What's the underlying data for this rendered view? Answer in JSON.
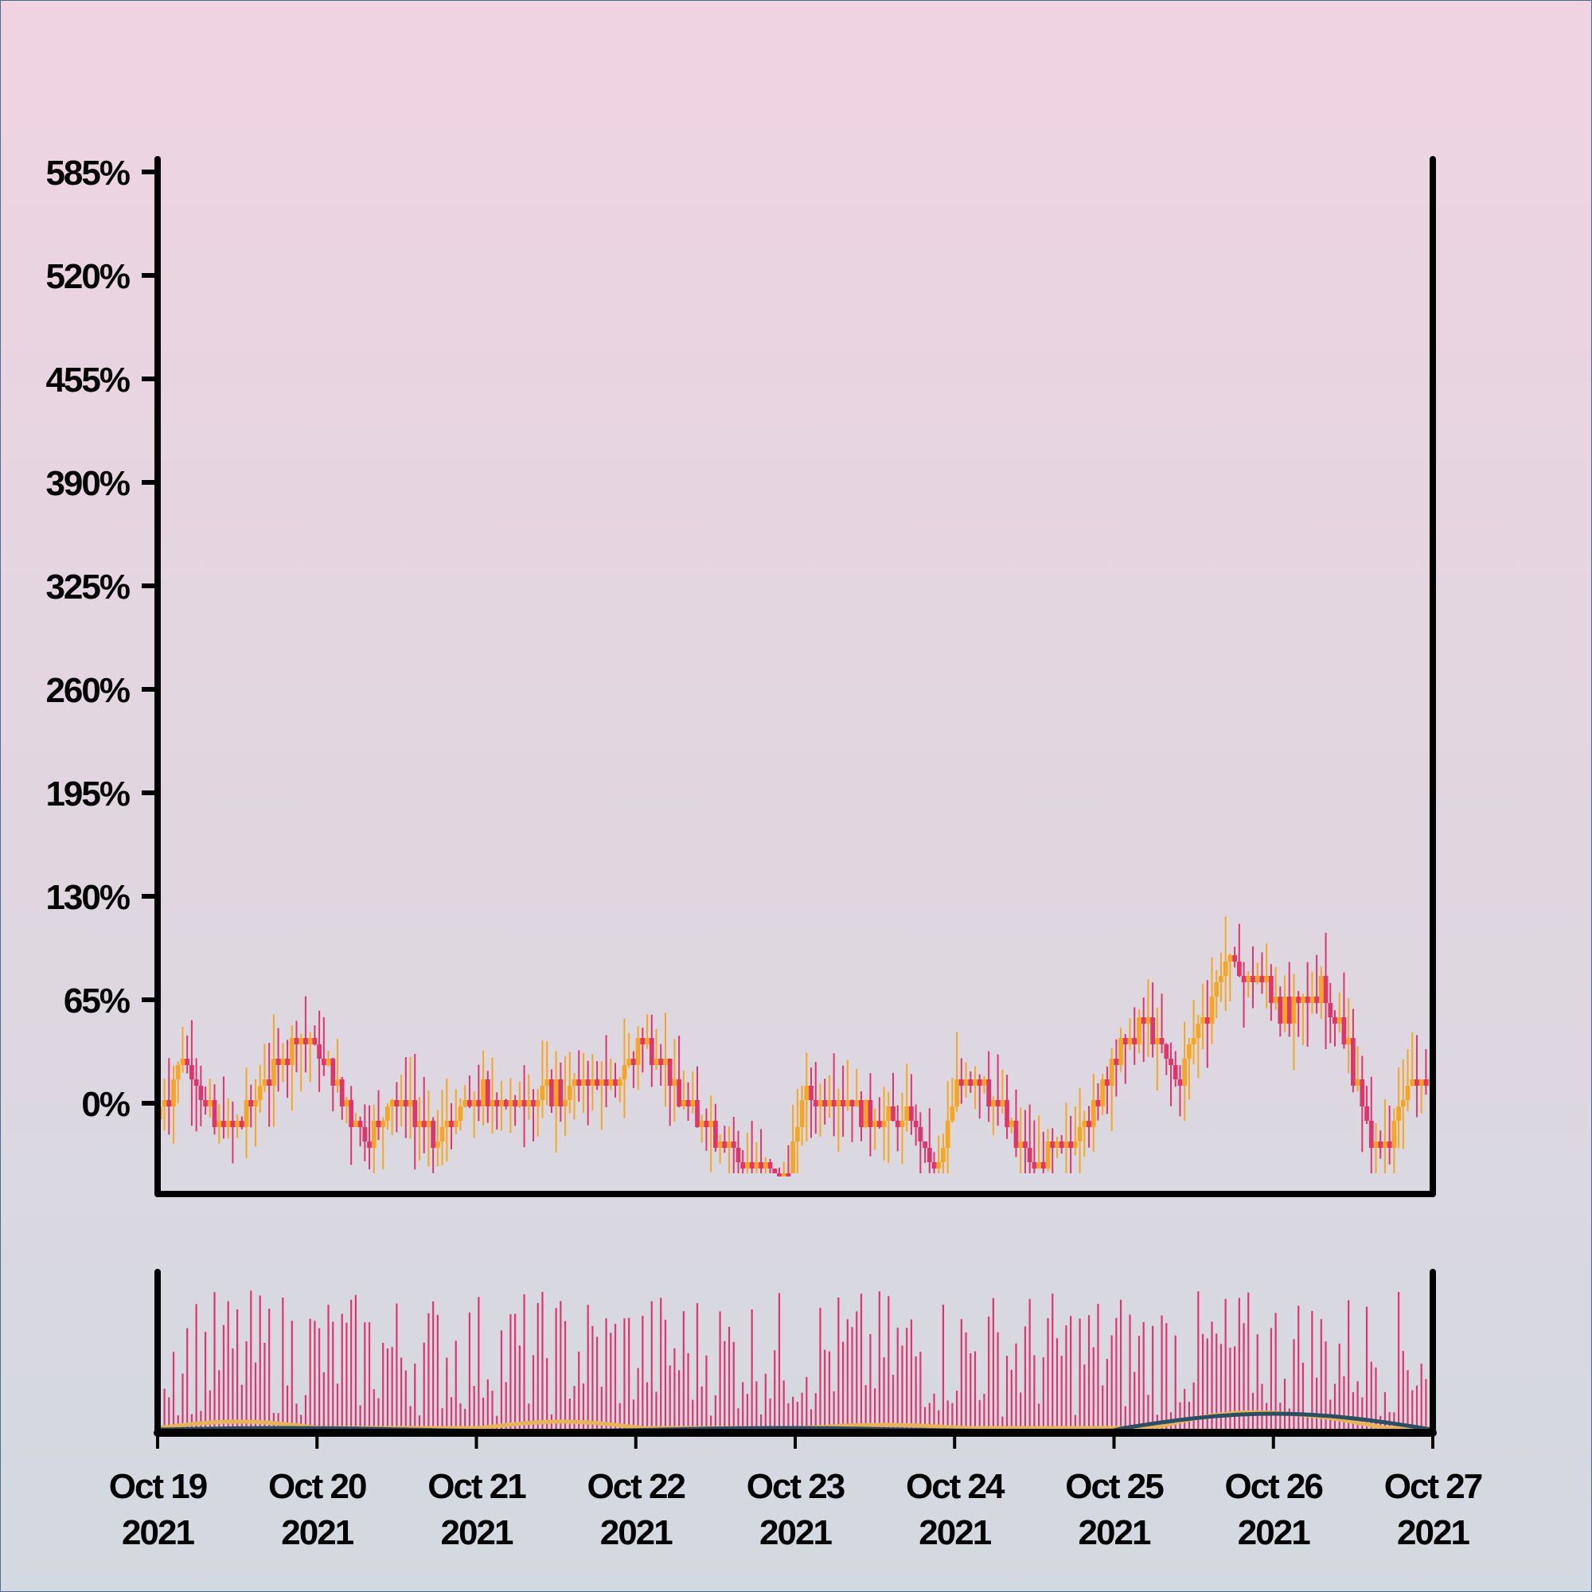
{
  "chart_data": {
    "type": "candlestick",
    "title": "",
    "xlabel": "",
    "ylabel": "",
    "y_unit": "%",
    "ylim": [
      -17,
      585
    ],
    "y_ticks": [
      "0%",
      "65%",
      "130%",
      "195%",
      "260%",
      "325%",
      "390%",
      "455%",
      "520%",
      "585%"
    ],
    "x_ticks": [
      {
        "line1": "Oct 19",
        "line2": "2021"
      },
      {
        "line1": "Oct 20",
        "line2": "2021"
      },
      {
        "line1": "Oct 21",
        "line2": "2021"
      },
      {
        "line1": "Oct 22",
        "line2": "2021"
      },
      {
        "line1": "Oct 23",
        "line2": "2021"
      },
      {
        "line1": "Oct 24",
        "line2": "2021"
      },
      {
        "line1": "Oct 25",
        "line2": "2021"
      },
      {
        "line1": "Oct 26",
        "line2": "2021"
      },
      {
        "line1": "Oct 27",
        "line2": "2021"
      }
    ],
    "x_range": [
      "2021-10-19",
      "2021-10-27"
    ],
    "close_path": [
      [
        0.0,
        -10
      ],
      [
        0.15,
        30
      ],
      [
        0.3,
        0
      ],
      [
        0.45,
        -20
      ],
      [
        0.65,
        10
      ],
      [
        0.9,
        45
      ],
      [
        1.1,
        15
      ],
      [
        1.3,
        -20
      ],
      [
        1.5,
        5
      ],
      [
        1.75,
        -25
      ],
      [
        2.0,
        5
      ],
      [
        2.3,
        0
      ],
      [
        2.6,
        10
      ],
      [
        2.85,
        10
      ],
      [
        3.05,
        40
      ],
      [
        3.3,
        0
      ],
      [
        3.55,
        -25
      ],
      [
        3.75,
        -45
      ],
      [
        3.95,
        -50
      ],
      [
        4.05,
        10
      ],
      [
        4.2,
        0
      ],
      [
        4.45,
        -5
      ],
      [
        4.6,
        -10
      ],
      [
        4.75,
        -10
      ],
      [
        4.9,
        -45
      ],
      [
        5.0,
        10
      ],
      [
        5.15,
        20
      ],
      [
        5.35,
        -15
      ],
      [
        5.5,
        -40
      ],
      [
        5.6,
        -35
      ],
      [
        5.85,
        -10
      ],
      [
        6.0,
        30
      ],
      [
        6.2,
        50
      ],
      [
        6.4,
        15
      ],
      [
        6.55,
        50
      ],
      [
        6.7,
        85
      ],
      [
        6.9,
        80
      ],
      [
        7.1,
        55
      ],
      [
        7.3,
        75
      ],
      [
        7.45,
        40
      ],
      [
        7.65,
        -35
      ],
      [
        7.85,
        10
      ],
      [
        7.95,
        10
      ]
    ],
    "candle_colors": {
      "up": "#f5a623",
      "down": "#e0346c"
    },
    "volume_panel": {
      "type": "bar",
      "color": "#e0346c",
      "lines": [
        {
          "color": "#e8b45a"
        },
        {
          "color": "#2b4f62"
        }
      ]
    }
  }
}
